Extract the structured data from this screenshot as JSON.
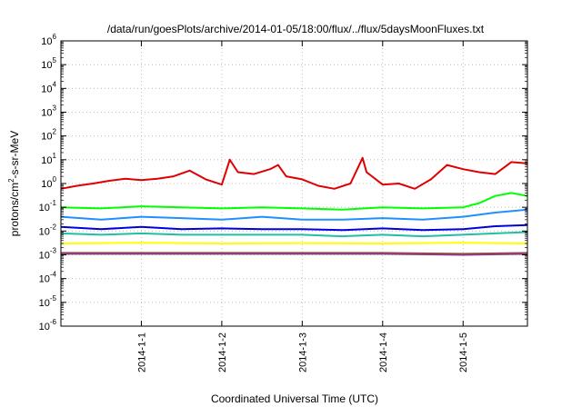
{
  "chart_data": {
    "type": "line",
    "title": "/data/run/goesPlots/archive/2014-01-05/18:00/flux/../flux/5daysMoonFluxes.txt",
    "xlabel": "Coordinated Universal Time (UTC)",
    "ylabel_parts": [
      "protons/cm",
      "2",
      "-s-sr-MeV"
    ],
    "yscale": "log",
    "ylim": [
      1e-06,
      1000000.0
    ],
    "xlim": [
      -1.0,
      4.8
    ],
    "grid": true,
    "x_ticks": [
      {
        "x": 0,
        "label": "2014-1-1"
      },
      {
        "x": 1,
        "label": "2014-1-2"
      },
      {
        "x": 2,
        "label": "2014-1-3"
      },
      {
        "x": 3,
        "label": "2014-1-4"
      },
      {
        "x": 4,
        "label": "2014-1-5"
      }
    ],
    "y_ticks": [
      {
        "exp": -6,
        "base": "10",
        "sup": "-6"
      },
      {
        "exp": -5,
        "base": "10",
        "sup": "-5"
      },
      {
        "exp": -4,
        "base": "10",
        "sup": "-4"
      },
      {
        "exp": -3,
        "base": "10",
        "sup": "-3"
      },
      {
        "exp": -2,
        "base": "10",
        "sup": "-2"
      },
      {
        "exp": -1,
        "base": "10",
        "sup": "-1"
      },
      {
        "exp": 0,
        "base": "10",
        "sup": "0"
      },
      {
        "exp": 1,
        "base": "10",
        "sup": "1"
      },
      {
        "exp": 2,
        "base": "10",
        "sup": "2"
      },
      {
        "exp": 3,
        "base": "10",
        "sup": "3"
      },
      {
        "exp": 4,
        "base": "10",
        "sup": "4"
      },
      {
        "exp": 5,
        "base": "10",
        "sup": "5"
      },
      {
        "exp": 6,
        "base": "10",
        "sup": "6"
      }
    ],
    "series": [
      {
        "color": "#e00000",
        "x": [
          -1.0,
          -0.8,
          -0.6,
          -0.4,
          -0.2,
          0.0,
          0.2,
          0.4,
          0.6,
          0.8,
          1.0,
          1.1,
          1.2,
          1.4,
          1.6,
          1.7,
          1.8,
          2.0,
          2.2,
          2.4,
          2.6,
          2.75,
          2.8,
          3.0,
          3.2,
          3.4,
          3.6,
          3.8,
          4.0,
          4.2,
          4.4,
          4.6,
          4.8
        ],
        "values": [
          0.6,
          0.8,
          1.0,
          1.3,
          1.6,
          1.4,
          1.6,
          2.0,
          3.5,
          1.5,
          0.9,
          10,
          3,
          2.5,
          4,
          6,
          2,
          1.5,
          0.8,
          0.6,
          1.0,
          12,
          3,
          0.9,
          1.0,
          0.6,
          1.5,
          6,
          4,
          3,
          2.5,
          8,
          7
        ]
      },
      {
        "color": "#00ff00",
        "x": [
          -1.0,
          -0.5,
          0.0,
          0.5,
          1.0,
          1.5,
          2.0,
          2.5,
          3.0,
          3.5,
          4.0,
          4.2,
          4.4,
          4.6,
          4.8
        ],
        "values": [
          0.1,
          0.09,
          0.11,
          0.1,
          0.09,
          0.1,
          0.09,
          0.08,
          0.1,
          0.09,
          0.1,
          0.15,
          0.3,
          0.4,
          0.3
        ]
      },
      {
        "color": "#1e90ff",
        "x": [
          -1.0,
          -0.5,
          0.0,
          0.5,
          1.0,
          1.5,
          2.0,
          2.5,
          3.0,
          3.5,
          4.0,
          4.4,
          4.8
        ],
        "values": [
          0.04,
          0.03,
          0.04,
          0.035,
          0.03,
          0.04,
          0.03,
          0.03,
          0.035,
          0.03,
          0.04,
          0.06,
          0.08
        ]
      },
      {
        "color": "#0000dd",
        "x": [
          -1.0,
          -0.5,
          0.0,
          0.5,
          1.0,
          1.5,
          2.0,
          2.5,
          3.0,
          3.5,
          4.0,
          4.4,
          4.8
        ],
        "values": [
          0.015,
          0.012,
          0.015,
          0.012,
          0.013,
          0.012,
          0.012,
          0.011,
          0.013,
          0.011,
          0.012,
          0.016,
          0.018
        ]
      },
      {
        "color": "#20c0a0",
        "x": [
          -1.0,
          -0.5,
          0.0,
          0.5,
          1.0,
          1.5,
          2.0,
          2.5,
          3.0,
          3.5,
          4.0,
          4.4,
          4.8
        ],
        "values": [
          0.008,
          0.007,
          0.008,
          0.007,
          0.007,
          0.007,
          0.007,
          0.006,
          0.007,
          0.006,
          0.007,
          0.008,
          0.009
        ]
      },
      {
        "color": "#ffff00",
        "x": [
          -1.0,
          0.0,
          1.0,
          2.0,
          3.0,
          4.0,
          4.8
        ],
        "values": [
          0.003,
          0.0032,
          0.003,
          0.0031,
          0.003,
          0.0032,
          0.003
        ]
      },
      {
        "color": "#a0522d",
        "x": [
          -1.0,
          0.0,
          1.0,
          2.0,
          3.0,
          4.0,
          4.8
        ],
        "values": [
          0.0012,
          0.0012,
          0.0012,
          0.0012,
          0.0012,
          0.0011,
          0.0012
        ]
      },
      {
        "color": "#8b3a8b",
        "x": [
          -1.0,
          0.0,
          1.0,
          2.0,
          3.0,
          4.0,
          4.8
        ],
        "values": [
          0.0011,
          0.0011,
          0.0011,
          0.0011,
          0.0011,
          0.001,
          0.0011
        ]
      }
    ]
  }
}
